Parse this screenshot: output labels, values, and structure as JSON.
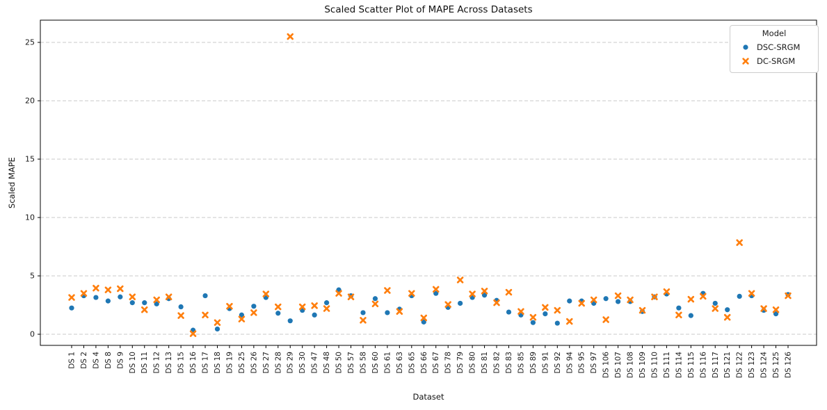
{
  "title": "Scaled Scatter Plot of MAPE Across Datasets",
  "chart_data": {
    "type": "scatter",
    "title": "Scaled Scatter Plot of MAPE Across Datasets",
    "xlabel": "Dataset",
    "ylabel": "Scaled MAPE",
    "yticks": [
      0,
      5,
      10,
      15,
      20,
      25
    ],
    "ylim": [
      -1,
      27
    ],
    "grid": "horizontal-dashed",
    "legend": {
      "title": "Model",
      "position": "upper-right"
    },
    "categories": [
      "DS 1",
      "DS 2",
      "DS 4",
      "DS 8",
      "DS 9",
      "DS 10",
      "DS 11",
      "DS 12",
      "DS 13",
      "DS 15",
      "DS 16",
      "DS 17",
      "DS 18",
      "DS 19",
      "DS 25",
      "DS 26",
      "DS 27",
      "DS 28",
      "DS 29",
      "DS 30",
      "DS 47",
      "DS 48",
      "DS 50",
      "DS 57",
      "DS 58",
      "DS 60",
      "DS 61",
      "DS 63",
      "DS 65",
      "DS 66",
      "DS 67",
      "DS 78",
      "DS 79",
      "DS 80",
      "DS 81",
      "DS 82",
      "DS 83",
      "DS 85",
      "DS 89",
      "DS 91",
      "DS 92",
      "DS 94",
      "DS 95",
      "DS 97",
      "DS 106",
      "DS 107",
      "DS 108",
      "DS 109",
      "DS 110",
      "DS 111",
      "DS 114",
      "DS 115",
      "DS 116",
      "DS 117",
      "DS 121",
      "DS 122",
      "DS 123",
      "DS 124",
      "DS 125",
      "DS 126"
    ],
    "series": [
      {
        "name": "DSC-SRGM",
        "marker": "circle",
        "color": "#1f77b4",
        "values": [
          2.25,
          3.3,
          3.15,
          2.85,
          3.2,
          2.7,
          2.7,
          2.6,
          3.05,
          2.35,
          0.35,
          3.3,
          0.45,
          2.2,
          1.65,
          2.4,
          3.15,
          1.8,
          1.15,
          2.05,
          1.65,
          2.7,
          3.8,
          3.3,
          1.85,
          3.05,
          1.85,
          2.15,
          3.3,
          1.05,
          3.5,
          2.3,
          2.65,
          3.15,
          3.35,
          2.9,
          1.9,
          1.65,
          1.0,
          1.75,
          0.95,
          2.85,
          2.85,
          2.65,
          3.05,
          2.8,
          2.8,
          1.95,
          3.2,
          3.45,
          2.25,
          1.6,
          3.5,
          2.65,
          2.1,
          3.25,
          3.3,
          2.05,
          1.75,
          3.4
        ]
      },
      {
        "name": "DC-SRGM",
        "marker": "x",
        "color": "#ff7f0e",
        "values": [
          3.15,
          3.5,
          3.95,
          3.8,
          3.9,
          3.2,
          2.1,
          2.95,
          3.2,
          1.6,
          0.05,
          1.65,
          1.0,
          2.4,
          1.3,
          1.85,
          3.45,
          2.35,
          25.5,
          2.35,
          2.45,
          2.2,
          3.5,
          3.2,
          1.2,
          2.6,
          3.75,
          1.95,
          3.5,
          1.4,
          3.85,
          2.55,
          4.65,
          3.45,
          3.7,
          2.7,
          3.6,
          1.95,
          1.45,
          2.3,
          2.05,
          1.1,
          2.65,
          2.95,
          1.25,
          3.3,
          2.95,
          2.05,
          3.2,
          3.65,
          1.65,
          3.0,
          3.25,
          2.2,
          1.45,
          7.85,
          3.5,
          2.2,
          2.1,
          3.3
        ]
      }
    ]
  }
}
